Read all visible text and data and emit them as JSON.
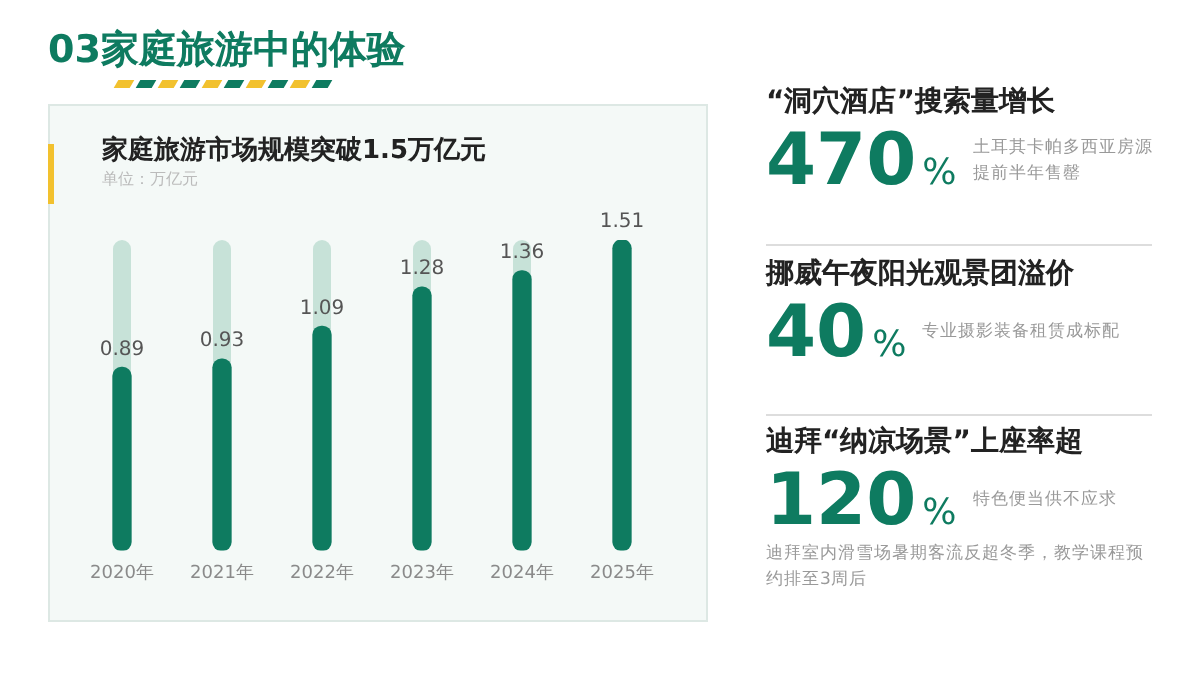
{
  "chart_data": {
    "type": "bar",
    "title": "家庭旅游市场规模突破1.5万亿元",
    "subtitle": "单位：万亿元",
    "categories": [
      "2020年",
      "2021年",
      "2022年",
      "2023年",
      "2024年",
      "2025年"
    ],
    "values": [
      0.89,
      0.93,
      1.09,
      1.28,
      1.36,
      1.51
    ],
    "color": "#0e7b60",
    "ylim": [
      0,
      1.51
    ],
    "tick_labels": "x",
    "grid": false,
    "legend": false,
    "data_labels": true,
    "annotations": [
      "03家庭旅游中的体验",
      "“洞穴酒店”搜索量增长",
      "470%",
      "土耳其卡帕多西亚房源提前半年售罄",
      "挪威午夜阳光观景团溢价",
      "40%",
      "专业摄影装备租赁成标配",
      "迪拜“纳凉场景”上座率超",
      "120%",
      "特色便当供不应求",
      "迪拜室内滑雪场暑期客流反超冬季，教学课程预约排至3周后"
    ]
  }
}
